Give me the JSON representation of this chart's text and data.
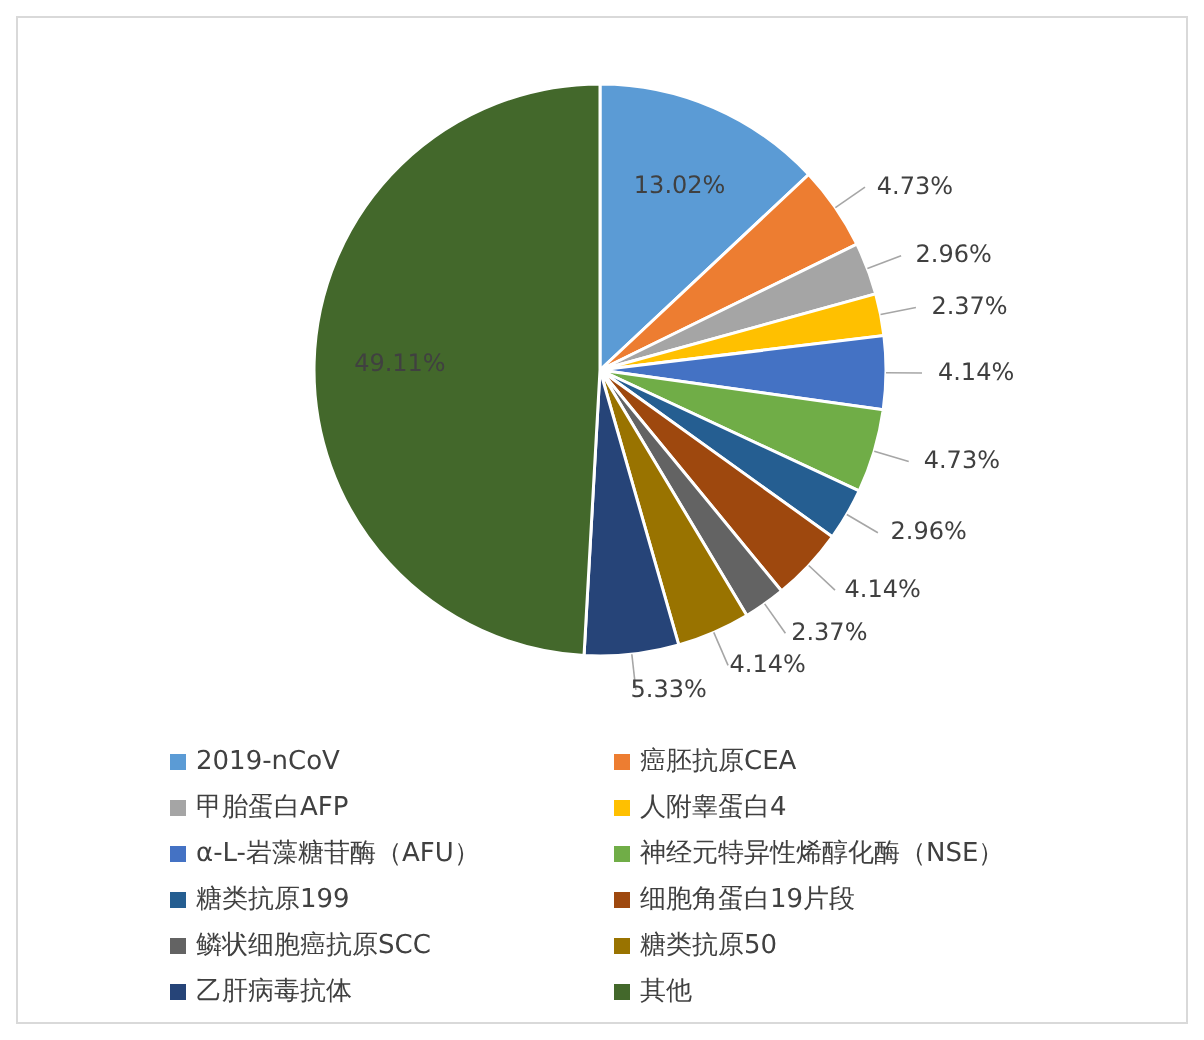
{
  "chart_data": {
    "type": "pie",
    "categories": [
      "2019-nCoV",
      "癌胚抗原CEA",
      "甲胎蛋白AFP",
      "人附睾蛋白4",
      "α-L-岩藻糖苷酶（AFU）",
      "神经元特异性烯醇化酶（NSE）",
      "糖类抗原199",
      "细胞角蛋白19片段",
      "鳞状细胞癌抗原SCC",
      "糖类抗原50",
      "乙肝病毒抗体",
      "其他"
    ],
    "values": [
      13.02,
      4.73,
      2.96,
      2.37,
      4.14,
      4.73,
      2.96,
      4.14,
      2.37,
      4.14,
      5.33,
      49.11
    ],
    "colors": [
      "#5b9bd5",
      "#ed7d31",
      "#a5a5a5",
      "#ffc000",
      "#4472c4",
      "#70ad47",
      "#255e91",
      "#9e480e",
      "#636363",
      "#997300",
      "#264478",
      "#43682b"
    ],
    "value_labels": [
      "13.02%",
      "4.73%",
      "2.96%",
      "2.37%",
      "4.14%",
      "4.73%",
      "2.96%",
      "4.14%",
      "2.37%",
      "4.14%",
      "5.33%",
      "49.11%"
    ],
    "legend": "bottom"
  }
}
